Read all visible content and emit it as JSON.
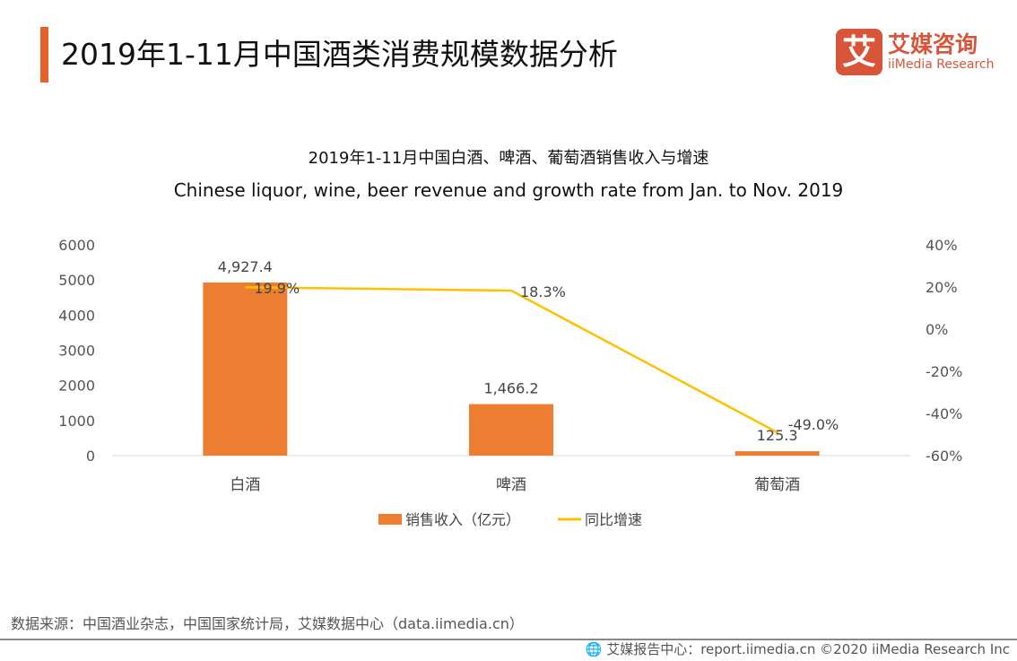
{
  "header": {
    "title": "2019年1-11月中国酒类消费规模数据分析"
  },
  "logo": {
    "cn": "艾媒咨询",
    "en": "iiMedia Research",
    "mark": "艾"
  },
  "chart_data": {
    "type": "bar+line",
    "title": "2019年1-11月中国白酒、啤酒、葡萄酒销售收入与增速",
    "subtitle": "Chinese liquor, wine, beer revenue and growth rate from Jan. to Nov. 2019",
    "categories": [
      "白酒",
      "啤酒",
      "葡萄酒"
    ],
    "series": [
      {
        "name": "销售收入（亿元）",
        "type": "bar",
        "axis": "left",
        "values": [
          4927.4,
          1466.2,
          125.3
        ],
        "labels": [
          "4,927.4",
          "1,466.2",
          "125.3"
        ],
        "color": "#ed7d31"
      },
      {
        "name": "同比增速",
        "type": "line",
        "axis": "right",
        "values": [
          19.9,
          18.3,
          -49.0
        ],
        "labels": [
          "19.9%",
          "18.3%",
          "-49.0%"
        ],
        "color": "#ffc000"
      }
    ],
    "left_axis": {
      "ylim": [
        0,
        6000
      ],
      "ticks": [
        "0",
        "1000",
        "2000",
        "3000",
        "4000",
        "5000",
        "6000"
      ]
    },
    "right_axis": {
      "ylim": [
        -60,
        40
      ],
      "ticks": [
        "-60%",
        "-40%",
        "-20%",
        "0%",
        "20%",
        "40%"
      ]
    },
    "grid": false,
    "legend": "bottom"
  },
  "source": "数据来源：中国酒业杂志，中国国家统计局，艾媒数据中心（data.iimedia.cn）",
  "footer": {
    "text": "艾媒报告中心：report.iimedia.cn  ©2020  iiMedia Research  Inc",
    "icon": "globe-icon"
  }
}
